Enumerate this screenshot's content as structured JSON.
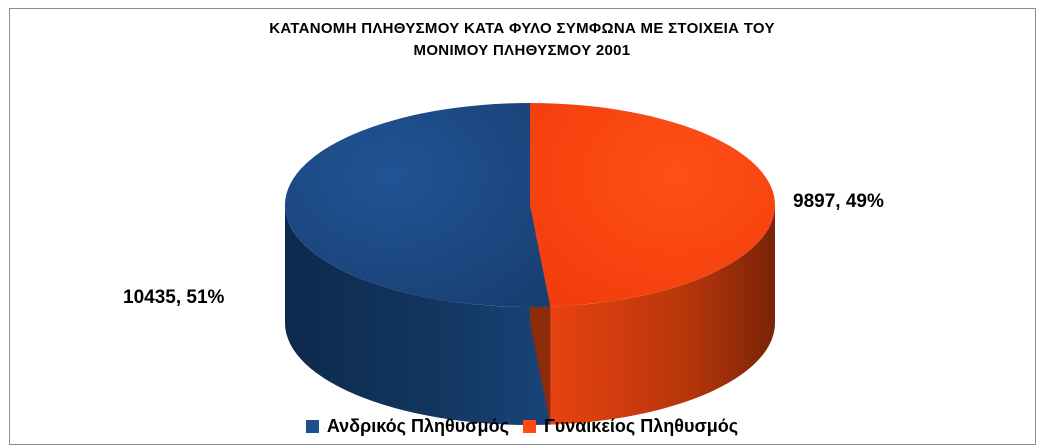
{
  "chart_data": {
    "type": "pie",
    "title_lines": [
      "ΚΑΤΑΝΟΜΗ ΠΛΗΘΥΣΜΟΥ ΚΑΤΑ ΦΥΛΟ ΣΥΜΦΩΝΑ ΜΕ ΣΤΟΙΧΕΙΑ  ΤΟΥ",
      "ΜΟΝΙΜΟΥ ΠΛΗΘΥΣΜΟΥ  2001"
    ],
    "categories": [
      "Ανδρικός Πληθυσμός",
      "Γυναικείος Πληθυσμός"
    ],
    "values": [
      10435,
      9897
    ],
    "data_labels": [
      "10435, 51%",
      "9897, 49%"
    ],
    "colors": [
      "#1f4e8c",
      "#ff4a12"
    ],
    "legend_position": "bottom",
    "style": "3d"
  }
}
